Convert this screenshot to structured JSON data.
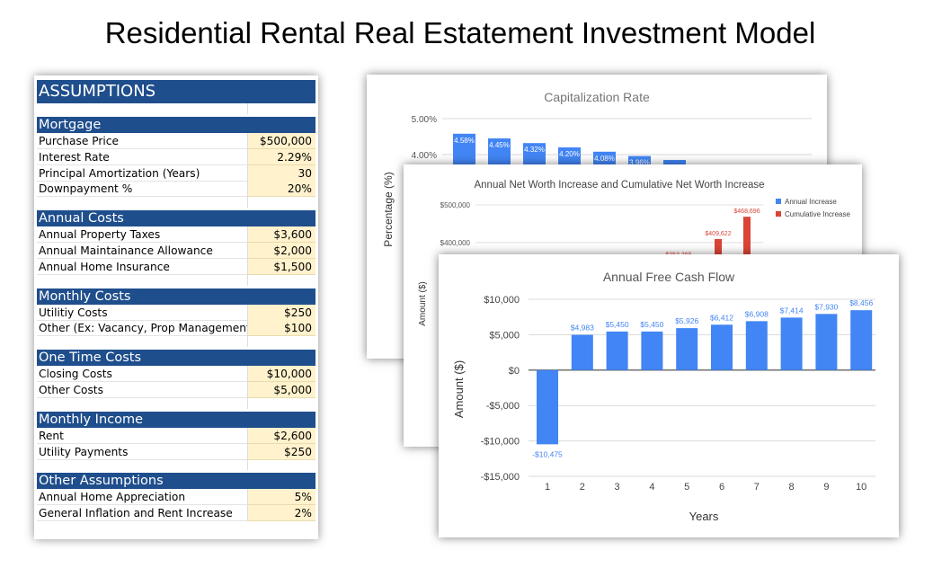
{
  "page_title": "Residential Rental Real Estatement Investment Model",
  "assumptions": {
    "title": "ASSUMPTIONS",
    "sections": [
      {
        "header": "Mortgage",
        "rows": [
          {
            "label": "Purchase Price",
            "value": "$500,000"
          },
          {
            "label": "Interest Rate",
            "value": "2.29%"
          },
          {
            "label": "Principal Amortization (Years)",
            "value": "30"
          },
          {
            "label": "Downpayment  %",
            "value": "20%"
          }
        ]
      },
      {
        "header": "Annual Costs",
        "rows": [
          {
            "label": "Annual Property Taxes",
            "value": "$3,600"
          },
          {
            "label": "Annual Maintainance Allowance",
            "value": "$2,000"
          },
          {
            "label": "Annual Home Insurance",
            "value": "$1,500"
          }
        ]
      },
      {
        "header": "Monthly Costs",
        "rows": [
          {
            "label": "Utilitiy Costs",
            "value": "$250"
          },
          {
            "label": "Other (Ex: Vacancy, Prop Management)",
            "value": "$100"
          }
        ]
      },
      {
        "header": "One Time Costs",
        "rows": [
          {
            "label": "Closing Costs",
            "value": "$10,000"
          },
          {
            "label": "Other Costs",
            "value": "$5,000"
          }
        ]
      },
      {
        "header": "Monthly Income",
        "rows": [
          {
            "label": "Rent",
            "value": "$2,600"
          },
          {
            "label": "Utility Payments",
            "value": "$250"
          }
        ]
      },
      {
        "header": "Other Assumptions",
        "rows": [
          {
            "label": "Annual Home Appreciation",
            "value": "5%"
          },
          {
            "label": "General Inflation and Rent Increase",
            "value": "2%"
          }
        ]
      }
    ]
  },
  "chart_data": [
    {
      "type": "bar",
      "title": "Capitalization Rate",
      "ylabel": "Percentage (%)",
      "y_ticks": [
        "5.00%",
        "4.00%"
      ],
      "ylim": [
        0,
        5
      ],
      "visible_values": [
        4.58,
        4.45,
        4.32,
        4.2,
        4.08,
        3.96,
        3.85
      ],
      "data_labels": [
        "4.58%",
        "4.45%",
        "4.32%",
        "4.20%",
        "4.08%",
        "3.96%",
        ""
      ],
      "bar_color": "#4285f4"
    },
    {
      "type": "bar",
      "title": "Annual Net Worth Increase and Cumulative Net Worth Increase",
      "ylabel": "Amount ($)",
      "y_ticks": [
        "$500,000",
        "$400,000"
      ],
      "legend_position": "top-right",
      "series": [
        {
          "name": "Annual Increase",
          "color": "#4285f4"
        },
        {
          "name": "Cumulative Increase",
          "color": "#db4437",
          "visible_values": [
            353365,
            409622,
            468696
          ],
          "data_labels": [
            "$353,365",
            "$409,622",
            "$468,696"
          ]
        }
      ]
    },
    {
      "type": "bar",
      "title": "Annual Free Cash Flow",
      "xlabel": "Years",
      "ylabel": "Amount ($)",
      "categories": [
        "1",
        "2",
        "3",
        "4",
        "5",
        "6",
        "7",
        "8",
        "9",
        "10"
      ],
      "values": [
        -10475,
        4983,
        5450,
        5450,
        5926,
        6412,
        6908,
        7414,
        7930,
        8456
      ],
      "data_labels": [
        "-$10,475",
        "$4,983",
        "$5,450",
        "$5,450",
        "$5,926",
        "$6,412",
        "$6,908",
        "$7,414",
        "$7,930",
        "$8,456"
      ],
      "y_ticks": [
        {
          "value": 10000,
          "label": "$10,000"
        },
        {
          "value": 5000,
          "label": "$5,000"
        },
        {
          "value": 0,
          "label": "$0"
        },
        {
          "value": -5000,
          "label": "-$5,000"
        },
        {
          "value": -10000,
          "label": "-$10,000"
        },
        {
          "value": -15000,
          "label": "-$15,000"
        }
      ],
      "ylim": [
        -15000,
        10000
      ],
      "bar_color": "#4285f4",
      "grid": true
    }
  ]
}
